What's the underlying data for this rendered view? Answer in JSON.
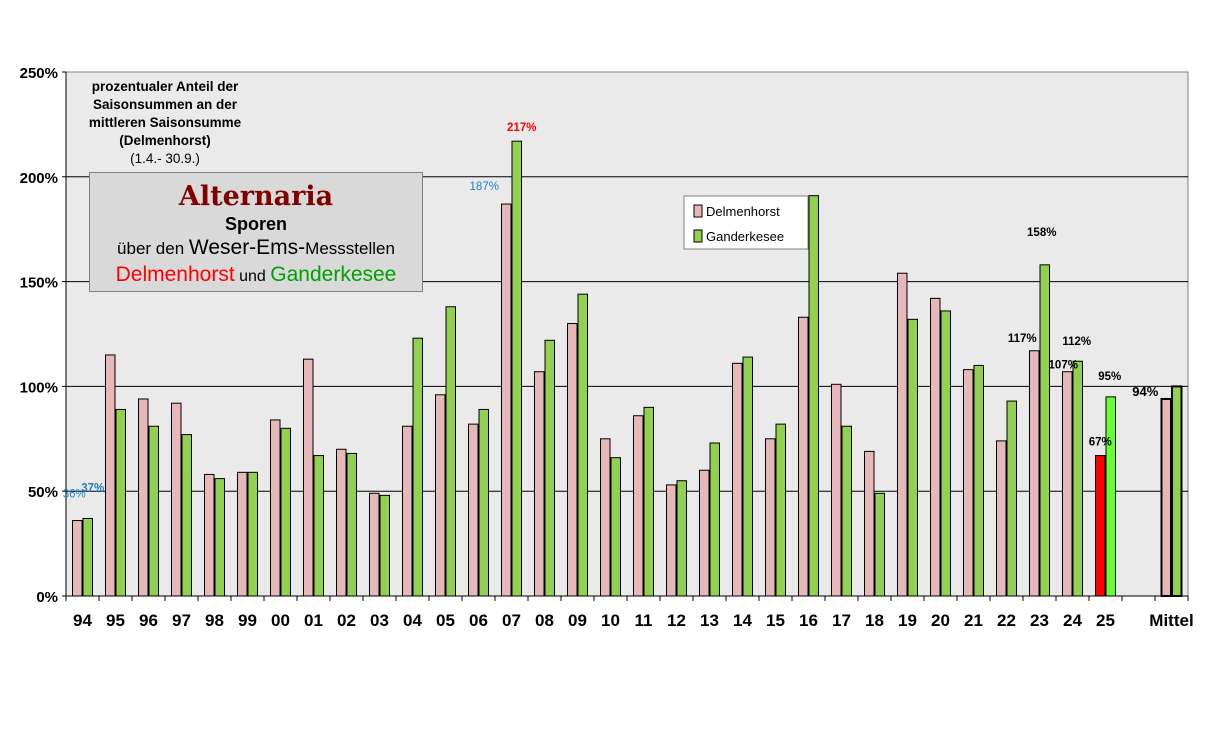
{
  "note": {
    "line1": "prozentualer Anteil  der",
    "line2": "Saisonsummen  an der",
    "line3": "mittleren Saisonsumme",
    "line4": "(Delmenhorst)",
    "line5": "(1.4.- 30.9.)"
  },
  "title": {
    "main": "Alternaria",
    "sub": "Sporen",
    "line3_a": "über den ",
    "line3_b": "Weser-Ems-",
    "line3_c": "Messstellen",
    "line4_a": "Delmenhorst",
    "line4_b": " und ",
    "line4_c": "Ganderkesee"
  },
  "colors": {
    "delmenhorst": "#e6b8b7",
    "ganderkesee": "#92d050",
    "highlight_delmenhorst": "#ff0000",
    "highlight_ganderkesee": "#66ff33",
    "label_blue": "#1f7fc6",
    "label_red": "#ff0000",
    "title_dark_red": "#800000"
  },
  "chart_data": {
    "type": "bar",
    "categories": [
      "94",
      "95",
      "96",
      "97",
      "98",
      "99",
      "00",
      "01",
      "02",
      "03",
      "04",
      "05",
      "06",
      "07",
      "08",
      "09",
      "10",
      "11",
      "12",
      "13",
      "14",
      "15",
      "16",
      "17",
      "18",
      "19",
      "20",
      "21",
      "22",
      "23",
      "24",
      "25",
      "",
      "Mittel"
    ],
    "series": [
      {
        "name": "Delmenhorst",
        "values": [
          36,
          115,
          94,
          92,
          58,
          59,
          84,
          113,
          70,
          49,
          81,
          96,
          82,
          187,
          107,
          130,
          75,
          86,
          53,
          60,
          111,
          75,
          133,
          101,
          69,
          154,
          142,
          108,
          74,
          117,
          107,
          67,
          null,
          94
        ]
      },
      {
        "name": "Ganderkesee",
        "values": [
          37,
          89,
          81,
          77,
          56,
          59,
          80,
          67,
          68,
          48,
          123,
          138,
          89,
          217,
          122,
          144,
          66,
          90,
          55,
          73,
          114,
          82,
          191,
          81,
          49,
          132,
          136,
          110,
          93,
          158,
          112,
          95,
          null,
          100
        ]
      }
    ],
    "yticks": [
      "0%",
      "50%",
      "100%",
      "150%",
      "200%",
      "250%"
    ],
    "ylim": [
      0,
      250
    ],
    "grid": true,
    "legend_position": "top-center",
    "data_labels": [
      {
        "category": "94",
        "series": "Delmenhorst",
        "text": "36%",
        "color": "#1f7fc6"
      },
      {
        "category": "94",
        "series": "Ganderkesee",
        "text": "37%",
        "color": "#1f7fc6"
      },
      {
        "category": "07",
        "series": "Delmenhorst",
        "text": "187%",
        "color": "#1f7fc6"
      },
      {
        "category": "07",
        "series": "Ganderkesee",
        "text": "217%",
        "color": "#ff0000"
      },
      {
        "category": "23",
        "series": "Delmenhorst",
        "text": "117%",
        "color": "#000000"
      },
      {
        "category": "23",
        "series": "Ganderkesee",
        "text": "158%",
        "color": "#000000"
      },
      {
        "category": "24",
        "series": "Delmenhorst",
        "text": "107%",
        "color": "#000000"
      },
      {
        "category": "24",
        "series": "Ganderkesee",
        "text": "112%",
        "color": "#000000"
      },
      {
        "category": "25",
        "series": "Delmenhorst",
        "text": "67%",
        "color": "#000000"
      },
      {
        "category": "25",
        "series": "Ganderkesee",
        "text": "95%",
        "color": "#000000"
      },
      {
        "category": "Mittel",
        "series": "Delmenhorst",
        "text": "94%",
        "color": "#000000"
      }
    ]
  }
}
